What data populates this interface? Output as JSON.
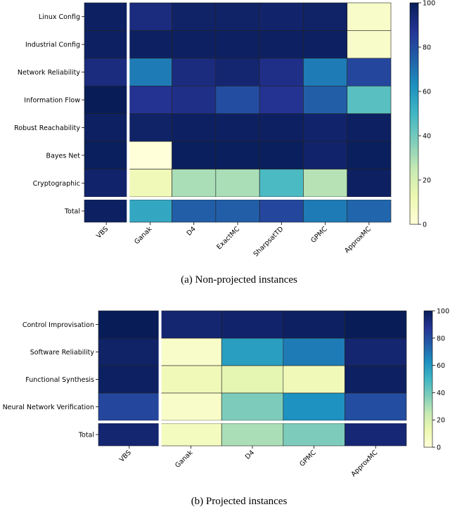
{
  "chart_data": [
    {
      "type": "heatmap",
      "caption": "(a) Non-projected instances",
      "columns": [
        "VBS",
        "Ganak",
        "D4",
        "ExactMC",
        "SharpsatTD",
        "GPMC",
        "ApproxMC"
      ],
      "rows": [
        "Linux Config",
        "Industrial Config",
        "Network Reliability",
        "Information Flow",
        "Robust Reachability",
        "Bayes Net",
        "Cryptographic",
        "Total"
      ],
      "values": [
        [
          98,
          92,
          97,
          97,
          96,
          97,
          5
        ],
        [
          98,
          98,
          98,
          98,
          98,
          98,
          5
        ],
        [
          92,
          68,
          92,
          95,
          90,
          68,
          82
        ],
        [
          100,
          88,
          90,
          80,
          88,
          75,
          45
        ],
        [
          98,
          97,
          98,
          98,
          98,
          96,
          98
        ],
        [
          99,
          0,
          99,
          99,
          99,
          96,
          99
        ],
        [
          96,
          10,
          30,
          30,
          48,
          28,
          98
        ],
        [
          98,
          55,
          75,
          75,
          82,
          68,
          73
        ]
      ],
      "colorbar": {
        "min": 0,
        "max": 100,
        "ticks": [
          0,
          20,
          40,
          60,
          80,
          100
        ]
      }
    },
    {
      "type": "heatmap",
      "caption": "(b) Projected instances",
      "columns": [
        "VBS",
        "Ganak",
        "D4",
        "GPMC",
        "ApproxMC"
      ],
      "rows": [
        "Control Improvisation",
        "Software Reliability",
        "Functional Synthesis",
        "Neural Network Verification",
        "Total"
      ],
      "values": [
        [
          100,
          95,
          96,
          98,
          100
        ],
        [
          97,
          5,
          58,
          68,
          95
        ],
        [
          98,
          10,
          15,
          10,
          98
        ],
        [
          82,
          5,
          38,
          62,
          80
        ],
        [
          95,
          8,
          30,
          38,
          94
        ]
      ],
      "colorbar": {
        "min": 0,
        "max": 100,
        "ticks": [
          0,
          20,
          40,
          60,
          80,
          100
        ]
      }
    }
  ]
}
